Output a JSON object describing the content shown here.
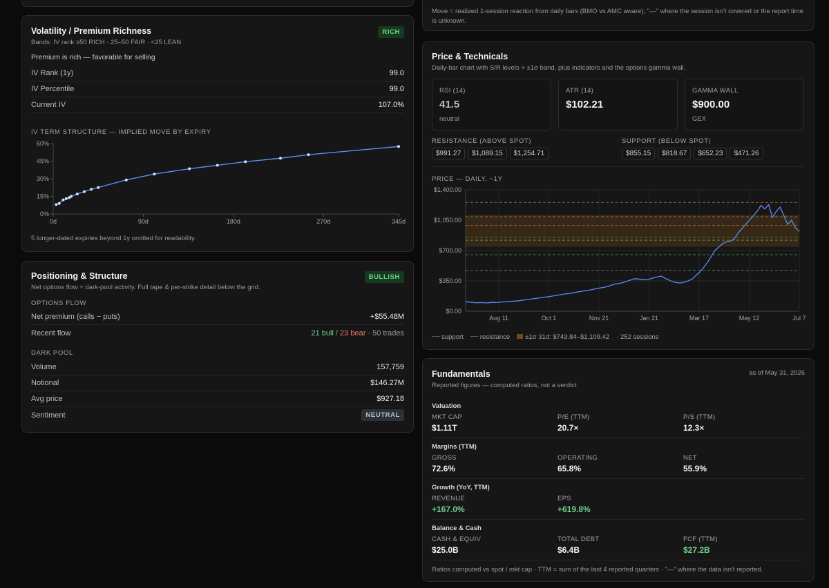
{
  "earnings_card": {
    "note": "Move = realized 1-session reaction from daily bars (BMO vs AMC aware); \"—\" where the session isn't covered or the report time is unknown."
  },
  "volatility": {
    "title": "Volatility / Premium Richness",
    "bands": "Bands: IV rank ≥50 RICH · 25–50 FAIR · <25 LEAN",
    "badge": "RICH",
    "verdict": "Premium is rich — favorable for selling",
    "rows": [
      {
        "label": "IV Rank (1y)",
        "value": "99.0"
      },
      {
        "label": "IV Percentile",
        "value": "99.0"
      },
      {
        "label": "Current IV",
        "value": "107.0%"
      }
    ],
    "term_title": "IV TERM STRUCTURE — IMPLIED MOVE BY EXPIRY",
    "footnote": "5 longer-dated expiries beyond 1y omitted for readability."
  },
  "iv_chart_data": {
    "type": "line",
    "x_ticks": [
      "0d",
      "90d",
      "180d",
      "270d",
      "345d"
    ],
    "y_ticks": [
      "60%",
      "45%",
      "30%",
      "15%",
      "0%"
    ],
    "xlim": [
      0,
      345
    ],
    "ylim": [
      0,
      60
    ],
    "points": [
      [
        3,
        8
      ],
      [
        6,
        9
      ],
      [
        10,
        12
      ],
      [
        13,
        13
      ],
      [
        16,
        14
      ],
      [
        18,
        15
      ],
      [
        24,
        17
      ],
      [
        31,
        19
      ],
      [
        38,
        21
      ],
      [
        45,
        22.5
      ],
      [
        73,
        29
      ],
      [
        101,
        34
      ],
      [
        136,
        38.5
      ],
      [
        164,
        41.5
      ],
      [
        192,
        44.5
      ],
      [
        227,
        47.5
      ],
      [
        255,
        50.5
      ],
      [
        345,
        57.5
      ]
    ]
  },
  "positioning": {
    "title": "Positioning & Structure",
    "desc": "Net options flow + dark-pool activity. Full tape & per-strike detail below the grid.",
    "badge": "BULLISH",
    "flow_header": "OPTIONS FLOW",
    "net_premium_label": "Net premium (calls − puts)",
    "net_premium_value": "+$55.48M",
    "recent_flow_label": "Recent flow",
    "bull": "21 bull",
    "slash": " / ",
    "bear": "23 bear",
    "trades": " · 50 trades",
    "dark_header": "DARK POOL",
    "dark_rows": [
      {
        "label": "Volume",
        "value": "157,759"
      },
      {
        "label": "Notional",
        "value": "$146.27M"
      },
      {
        "label": "Avg price",
        "value": "$927.18"
      }
    ],
    "sentiment_label": "Sentiment",
    "sentiment_badge": "NEUTRAL"
  },
  "technicals": {
    "title": "Price & Technicals",
    "desc": "Daily-bar chart with S/R levels + ±1σ band, plus indicators and the options gamma wall.",
    "rsi_label": "RSI (14)",
    "rsi_value": "41.5",
    "rsi_sub": "neutral",
    "atr_label": "ATR (14)",
    "atr_value": "$102.21",
    "gamma_label": "GAMMA WALL",
    "gamma_value": "$900.00",
    "gamma_sub": "GEX",
    "resistance_label": "RESISTANCE (ABOVE SPOT)",
    "resistance": [
      "$991.27",
      "$1,089.15",
      "$1,254.71"
    ],
    "support_label": "SUPPORT (BELOW SPOT)",
    "support": [
      "$855.15",
      "$818.67",
      "$652.23",
      "$471.26"
    ],
    "chart_label": "PRICE — DAILY, ~1Y",
    "legend_support": "support",
    "legend_resistance": "resistance",
    "legend_band": "±1σ 31d: $743.84–$1,109.42",
    "legend_sessions": "· 252 sessions"
  },
  "chart_data": {
    "type": "line",
    "title": "PRICE — DAILY, ~1Y",
    "y_ticks": [
      "$1,400.00",
      "$1,050.00",
      "$700.00",
      "$350.00",
      "$0.00"
    ],
    "ylim": [
      0,
      1400
    ],
    "x_ticks": [
      "Aug 11",
      "Oct 1",
      "Nov 21",
      "Jan 21",
      "Mar 17",
      "May 12",
      "Jul 7"
    ],
    "sessions": 252,
    "band": [
      743.84,
      1109.42
    ],
    "resistance": [
      991.27,
      1089.15,
      1254.71
    ],
    "support": [
      855.15,
      818.67,
      652.23,
      471.26
    ],
    "series": [
      {
        "values": [
          110,
          105,
          100,
          98,
          100,
          96,
          98,
          102,
          100,
          104,
          108,
          112,
          115,
          118,
          122,
          128,
          135,
          140,
          146,
          152,
          158,
          165,
          170,
          178,
          186,
          192,
          200,
          205,
          212,
          220,
          228,
          235,
          242,
          250,
          260,
          268,
          275,
          285,
          300,
          315,
          320,
          330,
          345,
          360,
          375,
          372,
          368,
          362,
          372,
          385,
          395,
          405,
          380,
          360,
          340,
          330,
          325,
          335,
          350,
          370,
          410,
          450,
          500,
          560,
          630,
          700,
          740,
          780,
          800,
          810,
          830,
          900,
          950,
          1000,
          1050,
          1100,
          1150,
          1220,
          1180,
          1230,
          1080,
          1150,
          1200,
          1100,
          1000,
          1050,
          960,
          920
        ]
      }
    ]
  },
  "fundamentals": {
    "title": "Fundamentals",
    "asof": "as of May 31, 2026",
    "desc": "Reported figures — computed ratios, not a verdict",
    "valuation": "Valuation",
    "mktcap_l": "MKT CAP",
    "mktcap_v": "$1.11T",
    "pe_l": "P/E (TTM)",
    "pe_v": "20.7×",
    "ps_l": "P/S (TTM)",
    "ps_v": "12.3×",
    "margins": "Margins (TTM)",
    "gross_l": "GROSS",
    "gross_v": "72.6%",
    "op_l": "OPERATING",
    "op_v": "65.8%",
    "net_l": "NET",
    "net_v": "55.9%",
    "growth": "Growth (YoY, TTM)",
    "rev_l": "REVENUE",
    "rev_v": "+167.0%",
    "eps_l": "EPS",
    "eps_v": "+619.8%",
    "balance": "Balance & Cash",
    "cash_l": "CASH & EQUIV",
    "cash_v": "$25.0B",
    "debt_l": "TOTAL DEBT",
    "debt_v": "$6.4B",
    "fcf_l": "FCF (TTM)",
    "fcf_v": "$27.2B",
    "footnote": "Ratios computed vs spot / mkt cap · TTM = sum of the last 4 reported quarters · \"—\" where the data isn't reported."
  }
}
